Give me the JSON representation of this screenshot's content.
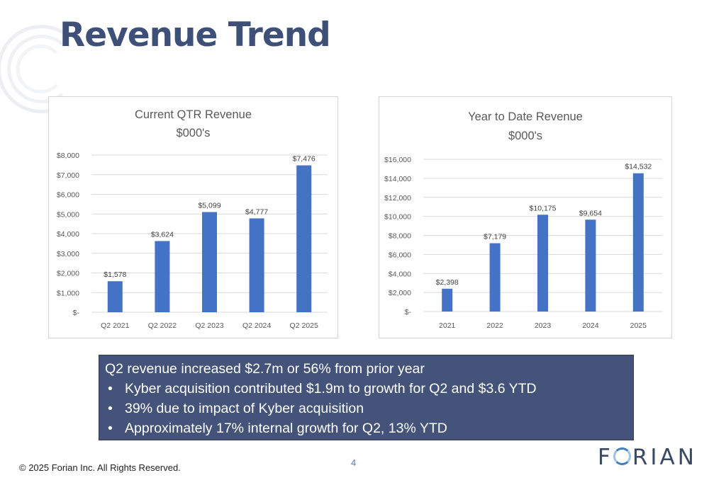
{
  "slide": {
    "title": "Revenue Trend",
    "footer": "© 2025 Forian Inc.  All Rights Reserved.",
    "page_number": "4",
    "logo_text": [
      "F",
      "RIAN"
    ]
  },
  "summary": {
    "headline": "Q2 revenue increased $2.7m or 56% from prior year",
    "bullets": [
      "Kyber acquisition contributed $1.9m to growth for Q2 and $3.6 YTD",
      "39% due to impact of Kyber acquisition",
      "Approximately 17% internal growth for Q2, 13% YTD"
    ],
    "bullet_glyph": "•"
  },
  "colors": {
    "bar": "#4472c4",
    "title": "#3f5078",
    "panel": "#44537a"
  },
  "chart_data": [
    {
      "type": "bar",
      "title": "Current QTR Revenue",
      "subtitle": "$000's",
      "categories": [
        "Q2 2021",
        "Q2 2022",
        "Q2 2023",
        "Q2 2024",
        "Q2 2025"
      ],
      "values": [
        1578,
        3624,
        5099,
        4777,
        7476
      ],
      "data_labels": [
        "$1,578",
        "$3,624",
        "$5,099",
        "$4,777",
        "$7,476"
      ],
      "ylim": [
        0,
        8000
      ],
      "yticks": [
        0,
        1000,
        2000,
        3000,
        4000,
        5000,
        6000,
        7000,
        8000
      ],
      "ytick_labels": [
        "$-",
        "$1,000",
        "$2,000",
        "$3,000",
        "$4,000",
        "$5,000",
        "$6,000",
        "$7,000",
        "$8,000"
      ],
      "grid": true,
      "legend": "none"
    },
    {
      "type": "bar",
      "title": "Year to Date Revenue",
      "subtitle": "$000's",
      "categories": [
        "2021",
        "2022",
        "2023",
        "2024",
        "2025"
      ],
      "values": [
        2398,
        7179,
        10175,
        9654,
        14532
      ],
      "data_labels": [
        "$2,398",
        "$7,179",
        "$10,175",
        "$9,654",
        "$14,532"
      ],
      "ylim": [
        0,
        16000
      ],
      "yticks": [
        0,
        2000,
        4000,
        6000,
        8000,
        10000,
        12000,
        14000,
        16000
      ],
      "ytick_labels": [
        "$-",
        "$2,000",
        "$4,000",
        "$6,000",
        "$8,000",
        "$10,000",
        "$12,000",
        "$14,000",
        "$16,000"
      ],
      "grid": true,
      "legend": "none"
    }
  ]
}
